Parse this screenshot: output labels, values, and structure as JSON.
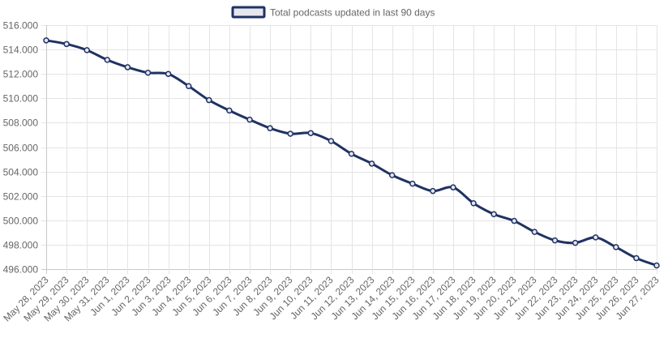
{
  "chart_data": {
    "type": "line",
    "title": "",
    "xlabel": "",
    "ylabel": "",
    "legend_position": "top-center",
    "grid": true,
    "categories": [
      "May 28, 2023",
      "May 29, 2023",
      "May 30, 2023",
      "May 31, 2023",
      "Jun 1, 2023",
      "Jun 2, 2023",
      "Jun 3, 2023",
      "Jun 4, 2023",
      "Jun 5, 2023",
      "Jun 6, 2023",
      "Jun 7, 2023",
      "Jun 8, 2023",
      "Jun 9, 2023",
      "Jun 10, 2023",
      "Jun 11, 2023",
      "Jun 12, 2023",
      "Jun 13, 2023",
      "Jun 14, 2023",
      "Jun 15, 2023",
      "Jun 16, 2023",
      "Jun 17, 2023",
      "Jun 18, 2023",
      "Jun 19, 2023",
      "Jun 20, 2023",
      "Jun 21, 2023",
      "Jun 22, 2023",
      "Jun 23, 2023",
      "Jun 24, 2023",
      "Jun 25, 2023",
      "Jun 26, 2023",
      "Jun 27, 2023"
    ],
    "ylim": [
      496000,
      516000
    ],
    "y_ticks": [
      {
        "value": 496000,
        "label": "496.000"
      },
      {
        "value": 498000,
        "label": "498.000"
      },
      {
        "value": 500000,
        "label": "500.000"
      },
      {
        "value": 502000,
        "label": "502.000"
      },
      {
        "value": 504000,
        "label": "504.000"
      },
      {
        "value": 506000,
        "label": "506.000"
      },
      {
        "value": 508000,
        "label": "508.000"
      },
      {
        "value": 510000,
        "label": "510.000"
      },
      {
        "value": 512000,
        "label": "512.000"
      },
      {
        "value": 514000,
        "label": "514.000"
      },
      {
        "value": 516000,
        "label": "516.000"
      }
    ],
    "series": [
      {
        "name": "Total podcasts updated in last 90 days",
        "color": "#1f3263",
        "point_fill": "#e6e6ee",
        "values": [
          514750,
          514450,
          513950,
          513150,
          512550,
          512100,
          512000,
          511000,
          509850,
          509000,
          508250,
          507550,
          507100,
          507150,
          506500,
          505450,
          504650,
          503700,
          503000,
          502400,
          502700,
          501400,
          500500,
          499950,
          499050,
          498350,
          498150,
          498600,
          497800,
          496900,
          496300
        ]
      }
    ]
  }
}
